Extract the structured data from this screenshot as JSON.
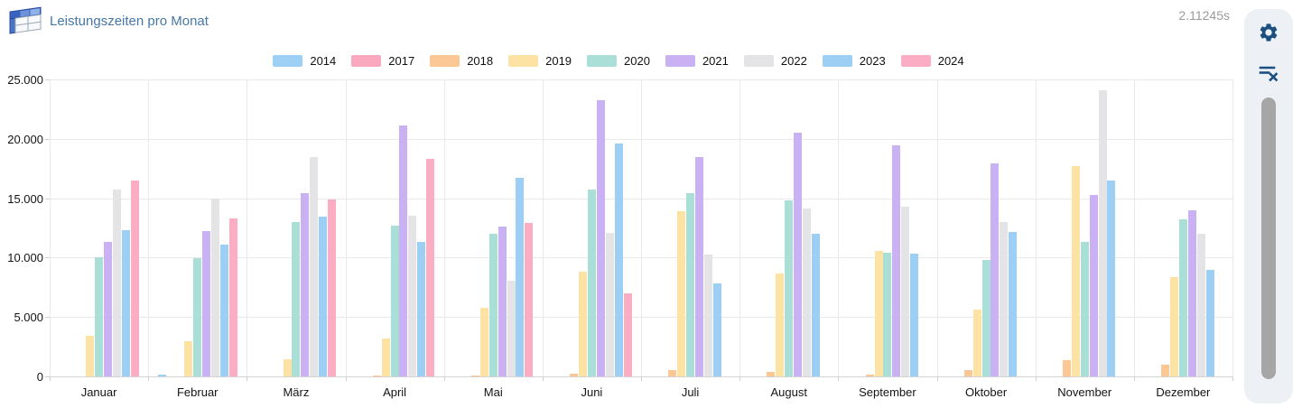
{
  "header": {
    "title": "Leistungszeiten pro Monat",
    "timer": "2.11245s",
    "icon": "table-icon"
  },
  "toolbar": {
    "icons": [
      "gear-icon",
      "filter-remove-icon",
      "scrollbar-thumb"
    ]
  },
  "chart_data": {
    "type": "bar",
    "title": "Leistungszeiten pro Monat",
    "categories": [
      "Januar",
      "Februar",
      "März",
      "April",
      "Mai",
      "Juni",
      "Juli",
      "August",
      "September",
      "Oktober",
      "November",
      "Dezember"
    ],
    "series": [
      {
        "name": "2014",
        "color": "#9ecff5",
        "values": [
          0,
          120,
          0,
          0,
          0,
          0,
          0,
          0,
          0,
          0,
          0,
          0
        ]
      },
      {
        "name": "2017",
        "color": "#f9a8bd",
        "values": [
          0,
          0,
          0,
          0,
          0,
          0,
          0,
          0,
          0,
          0,
          0,
          0
        ]
      },
      {
        "name": "2018",
        "color": "#fbc795",
        "values": [
          0,
          0,
          0,
          80,
          100,
          250,
          500,
          400,
          170,
          550,
          1400,
          950
        ]
      },
      {
        "name": "2019",
        "color": "#fce3a4",
        "values": [
          3450,
          3000,
          1450,
          3200,
          5800,
          8800,
          13900,
          8650,
          10600,
          5600,
          17700,
          8350
        ]
      },
      {
        "name": "2020",
        "color": "#aadfd7",
        "values": [
          10000,
          9950,
          13000,
          12700,
          12000,
          15700,
          15400,
          14800,
          10400,
          9800,
          11350,
          13250
        ]
      },
      {
        "name": "2021",
        "color": "#c9b1f3",
        "values": [
          11350,
          12250,
          15400,
          21100,
          12650,
          23250,
          18450,
          20500,
          19450,
          17900,
          15300,
          14000
        ]
      },
      {
        "name": "2022",
        "color": "#e4e4e7",
        "values": [
          15750,
          15000,
          18450,
          13500,
          8050,
          12050,
          10250,
          14100,
          14250,
          13000,
          24100,
          12000
        ]
      },
      {
        "name": "2023",
        "color": "#9dcef4",
        "values": [
          12300,
          11100,
          13450,
          11350,
          16700,
          19600,
          7850,
          12000,
          10350,
          12150,
          16500,
          9000
        ]
      },
      {
        "name": "2024",
        "color": "#fbadc3",
        "values": [
          16500,
          13300,
          14900,
          18350,
          12950,
          7000,
          0,
          0,
          0,
          0,
          0,
          0
        ]
      }
    ],
    "xlabel": "",
    "ylabel": "",
    "ylim": [
      0,
      25000
    ],
    "ytick_step": 5000,
    "ytick_labels": [
      "0",
      "5.000",
      "10.000",
      "15.000",
      "20.000",
      "25.000"
    ],
    "grid": true,
    "legend_position": "top"
  }
}
